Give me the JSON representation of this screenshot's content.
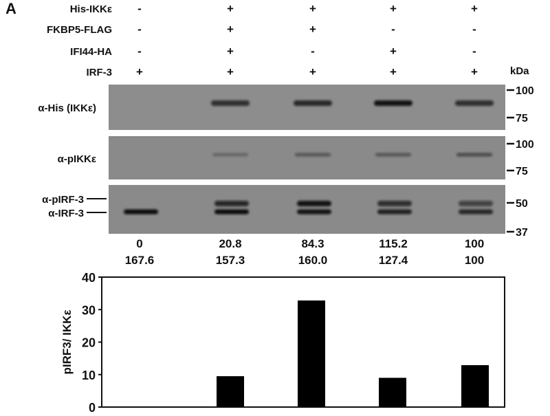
{
  "panel_letter": "A",
  "conditions": {
    "rows": [
      {
        "label": "His-IKKε",
        "signs": [
          "-",
          "+",
          "+",
          "+",
          "+"
        ]
      },
      {
        "label": "FKBP5-FLAG",
        "signs": [
          "-",
          "+",
          "+",
          "-",
          "-"
        ]
      },
      {
        "label": "IFI44-HA",
        "signs": [
          "-",
          "+",
          "-",
          "+",
          "-"
        ]
      },
      {
        "label": "IRF-3",
        "signs": [
          "+",
          "+",
          "+",
          "+",
          "+"
        ]
      }
    ],
    "kda_label": "kDa"
  },
  "blots": [
    {
      "label": "α-His (IKKε)",
      "markers": [
        "100",
        "75"
      ],
      "band_intensity": [
        0,
        0.75,
        0.8,
        0.95,
        0.75
      ]
    },
    {
      "label": "α-pIKKε",
      "markers": [
        "100",
        "75"
      ],
      "band_intensity": [
        0,
        0.25,
        0.45,
        0.45,
        0.55
      ]
    },
    {
      "label_upper": "α-pIRF-3",
      "label_lower": "α-IRF-3",
      "markers": [
        "50",
        "37"
      ],
      "upper_band_intensity": [
        0,
        0.8,
        0.95,
        0.75,
        0.6
      ],
      "lower_band_intensity": [
        1,
        1,
        0.95,
        0.85,
        0.8
      ]
    }
  ],
  "quantification": {
    "row1": [
      "0",
      "20.8",
      "84.3",
      "115.2",
      "100"
    ],
    "row2": [
      "167.6",
      "157.3",
      "160.0",
      "127.4",
      "100"
    ]
  },
  "colors": {
    "bars": "#000000",
    "blot_background": "#8a8a8a"
  },
  "chart_data": {
    "type": "bar",
    "categories": [
      "1",
      "2",
      "3",
      "4",
      "5"
    ],
    "values": [
      0,
      9.5,
      32.8,
      9.0,
      12.9
    ],
    "title": "",
    "xlabel": "",
    "ylabel": "pIRF3/ IKKε",
    "ylim": [
      0,
      40
    ],
    "yticks": [
      "0",
      "10",
      "20",
      "30",
      "40"
    ],
    "grid": false
  }
}
